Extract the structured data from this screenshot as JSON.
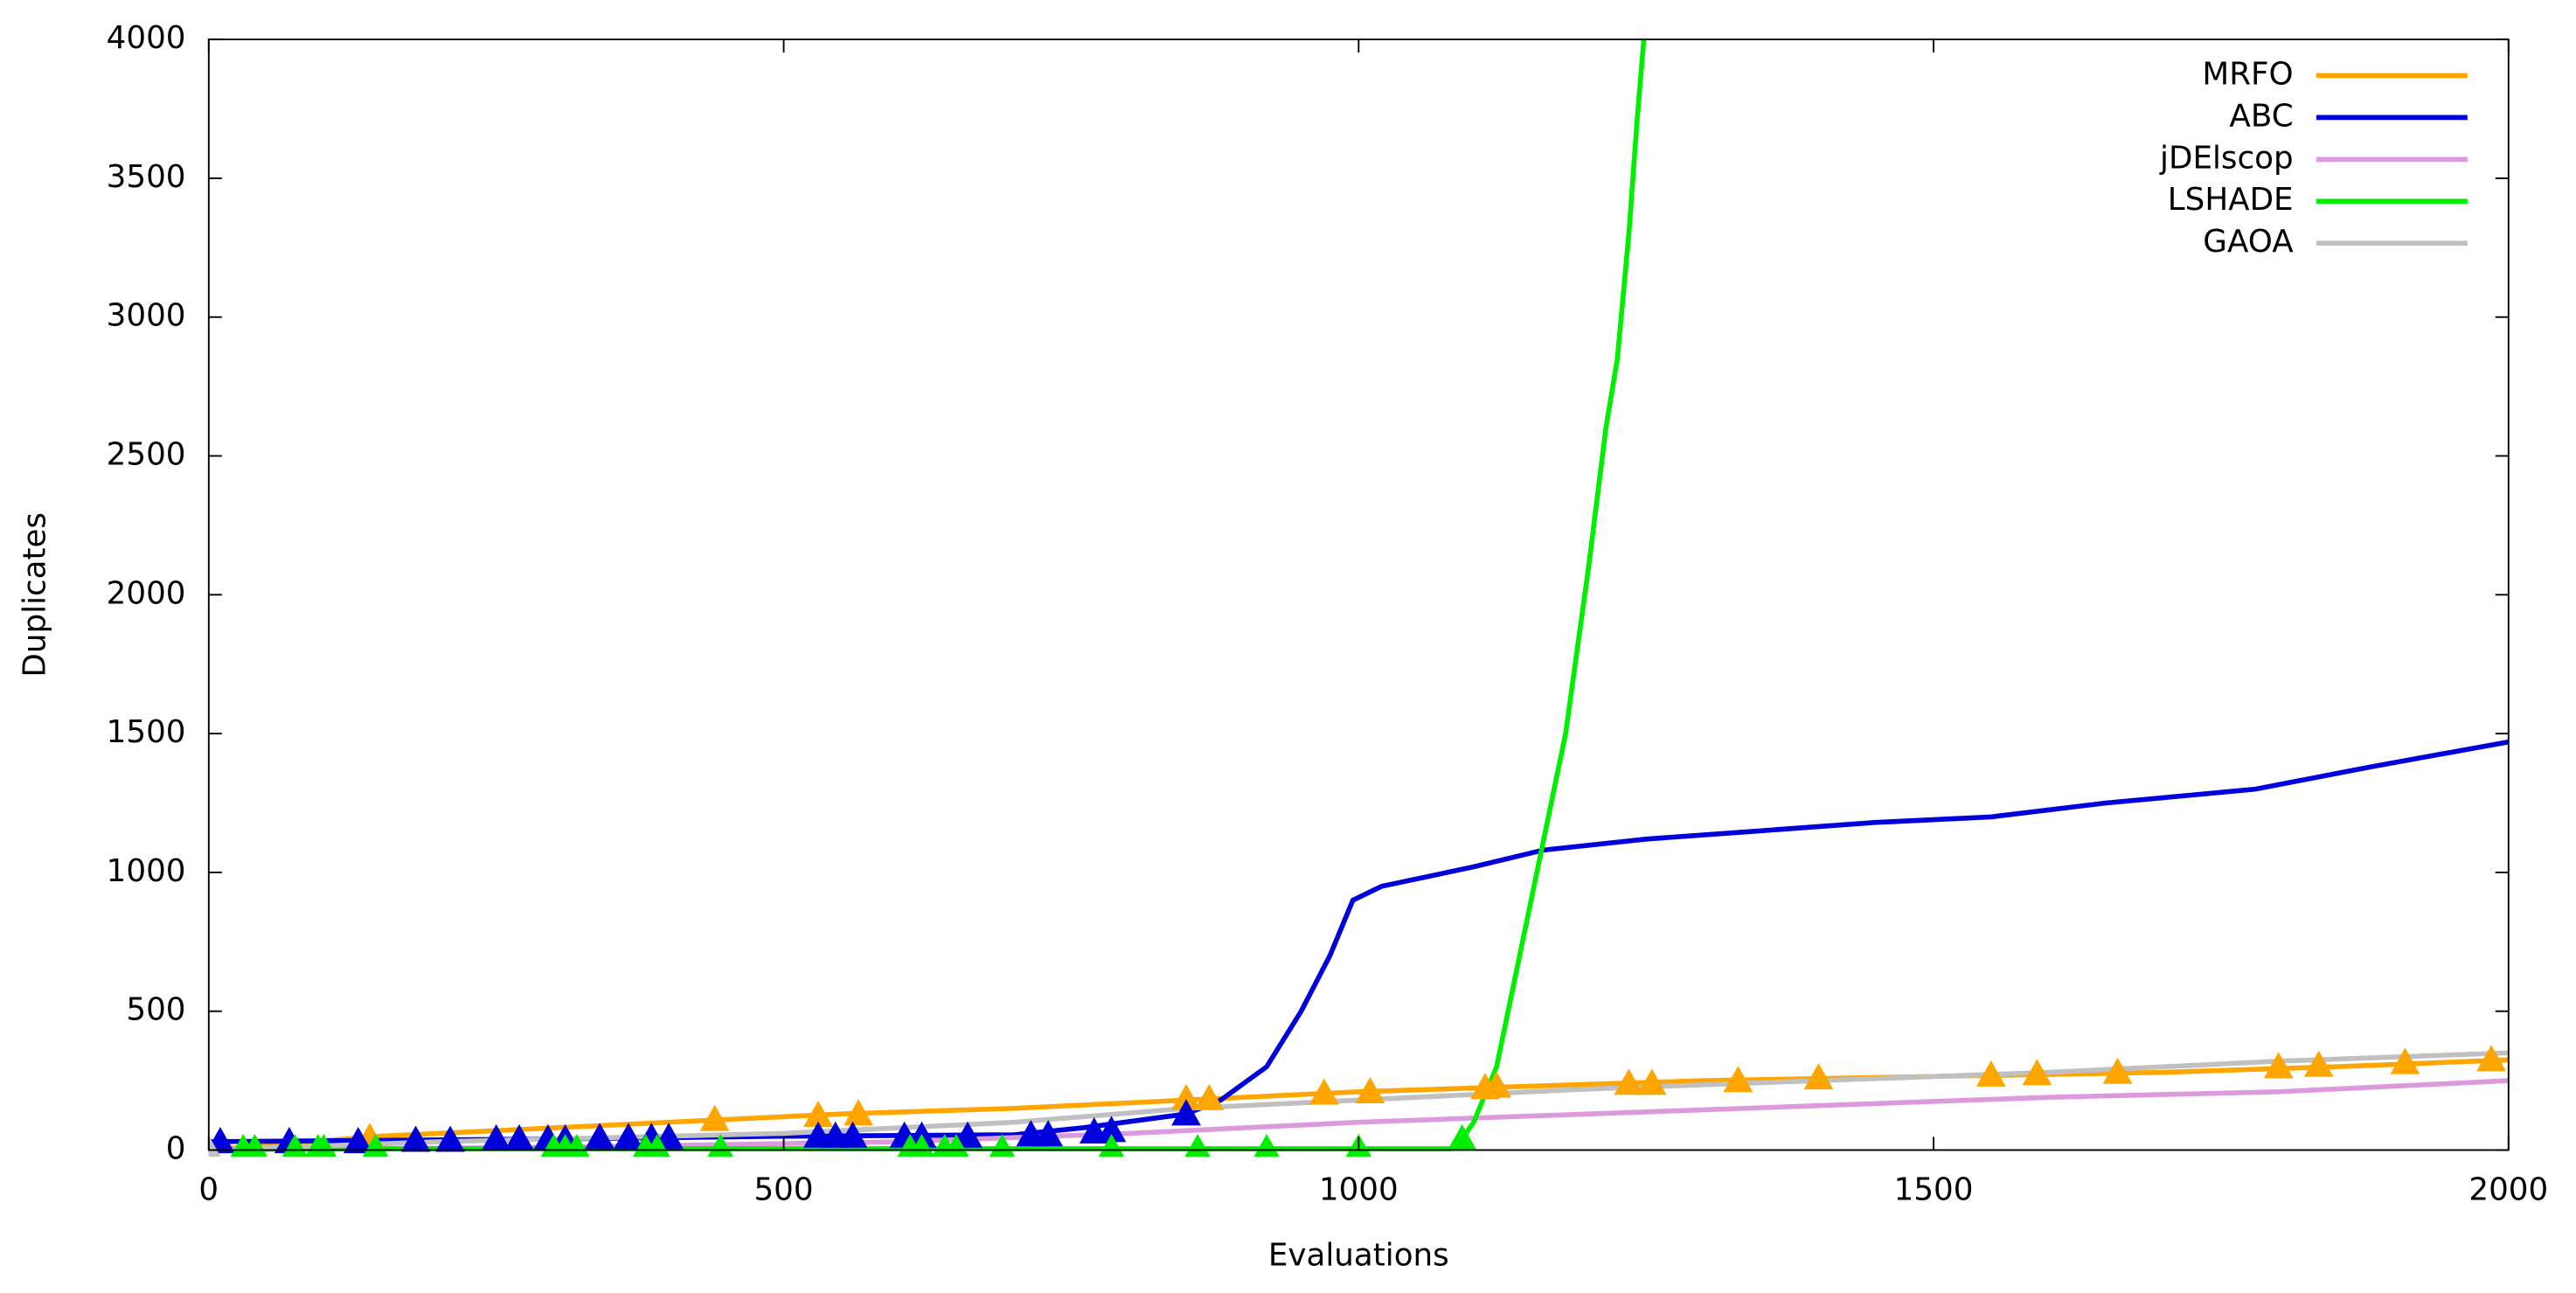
{
  "chart_data": {
    "type": "line",
    "xlabel": "Evaluations",
    "ylabel": "Duplicates",
    "xlim": [
      0,
      2000
    ],
    "ylim": [
      0,
      4000
    ],
    "xticks": [
      0,
      500,
      1000,
      1500,
      2000
    ],
    "yticks": [
      0,
      500,
      1000,
      1500,
      2000,
      2500,
      3000,
      3500,
      4000
    ],
    "grid": false,
    "legend": "top-right",
    "series": [
      {
        "name": "MRFO",
        "color": "#ffa500",
        "x": [
          0,
          150,
          400,
          550,
          700,
          850,
          1000,
          1150,
          1300,
          1500,
          1700,
          1850,
          2000
        ],
        "values": [
          0,
          50,
          100,
          130,
          150,
          180,
          210,
          230,
          250,
          265,
          280,
          300,
          325
        ],
        "marker_x": [
          140,
          440,
          530,
          565,
          850,
          870,
          970,
          1010,
          1110,
          1120,
          1235,
          1255,
          1330,
          1400,
          1550,
          1590,
          1660,
          1800,
          1835,
          1910,
          1985
        ],
        "marker_values": [
          45,
          110,
          125,
          130,
          185,
          185,
          205,
          210,
          225,
          230,
          240,
          240,
          250,
          260,
          270,
          275,
          280,
          300,
          305,
          315,
          325
        ]
      },
      {
        "name": "ABC",
        "color": "#0000dd",
        "x": [
          0,
          300,
          500,
          700,
          760,
          850,
          880,
          920,
          950,
          975,
          995,
          1020,
          1100,
          1160,
          1250,
          1350,
          1450,
          1550,
          1650,
          1780,
          1880,
          2000
        ],
        "values": [
          30,
          40,
          50,
          55,
          80,
          130,
          180,
          300,
          500,
          700,
          900,
          950,
          1020,
          1080,
          1120,
          1150,
          1180,
          1200,
          1250,
          1300,
          1380,
          1470
        ],
        "marker_x": [
          10,
          70,
          130,
          180,
          210,
          250,
          270,
          295,
          310,
          340,
          365,
          385,
          400,
          530,
          545,
          560,
          605,
          620,
          660,
          715,
          730,
          770,
          785,
          850
        ],
        "marker_values": [
          30,
          30,
          30,
          35,
          35,
          40,
          40,
          40,
          40,
          45,
          45,
          45,
          45,
          50,
          50,
          50,
          50,
          50,
          50,
          55,
          55,
          65,
          70,
          130
        ]
      },
      {
        "name": "jDElscop",
        "color": "#dd99dd",
        "x": [
          0,
          300,
          600,
          800,
          1000,
          1200,
          1400,
          1600,
          1800,
          2000
        ],
        "values": [
          0,
          10,
          30,
          60,
          100,
          130,
          160,
          190,
          210,
          250
        ]
      },
      {
        "name": "LSHADE",
        "color": "#00ee00",
        "x": [
          0,
          500,
          1080,
          1090,
          1100,
          1120,
          1140,
          1165,
          1180,
          1200,
          1215,
          1225,
          1235,
          1242,
          1248
        ],
        "values": [
          5,
          5,
          5,
          40,
          100,
          300,
          700,
          1200,
          1500,
          2100,
          2600,
          2850,
          3300,
          3700,
          4000
        ],
        "marker_x": [
          30,
          40,
          75,
          95,
          100,
          145,
          300,
          310,
          320,
          380,
          390,
          445,
          610,
          620,
          640,
          650,
          690,
          785,
          860,
          920,
          1000,
          1090
        ],
        "marker_values": [
          5,
          5,
          5,
          5,
          5,
          5,
          5,
          5,
          5,
          5,
          5,
          5,
          5,
          5,
          5,
          5,
          5,
          5,
          5,
          5,
          5,
          40
        ]
      },
      {
        "name": "GAOA",
        "color": "#c0c0c0",
        "x": [
          0,
          200,
          500,
          700,
          850,
          1000,
          1200,
          1400,
          1600,
          1800,
          2000
        ],
        "values": [
          0,
          30,
          60,
          100,
          150,
          180,
          220,
          250,
          280,
          320,
          350
        ],
        "marker_x": [
          0
        ],
        "marker_values": [
          0
        ]
      }
    ]
  }
}
